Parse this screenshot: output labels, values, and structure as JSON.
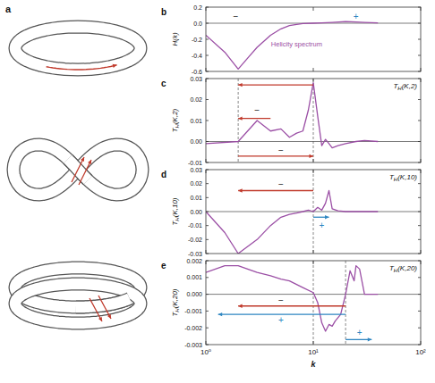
{
  "diagram": {
    "label": "a"
  },
  "chart_data": [
    {
      "type": "line",
      "label": "b",
      "ylabel": "H(k)",
      "x": [
        1,
        1.5,
        2,
        2.5,
        3,
        4,
        5,
        6,
        7,
        8,
        10,
        12,
        15,
        20,
        25,
        30,
        40
      ],
      "values": [
        -0.15,
        -0.36,
        -0.57,
        -0.42,
        -0.3,
        -0.15,
        -0.07,
        -0.03,
        -0.015,
        -0.005,
        0,
        0.005,
        0.01,
        0.02,
        0.015,
        0.01,
        0.005
      ],
      "color": "#9b4fa5",
      "log": "x",
      "xlim": [
        1,
        100
      ],
      "xticks": [
        1,
        10,
        100
      ],
      "ylim": [
        -0.6,
        0.2
      ],
      "yticks": [
        0.2,
        {
          "value": 0,
          "label": "0.0"
        },
        -0.2,
        -0.4,
        -0.6
      ],
      "tick_labels": "y",
      "hline": 0,
      "annotations": [
        {
          "text": "Helicity spectrum",
          "x": 7,
          "y": -0.25,
          "color": "#9b4fa5"
        },
        {
          "text": "−",
          "x": 1.9,
          "y": 0.08,
          "color": "#222222"
        },
        {
          "text": "+",
          "x": 25,
          "y": 0.08,
          "color": "#2e86c1"
        }
      ]
    },
    {
      "type": "line",
      "label": "c",
      "ylabel": {
        "main": "T",
        "sub": "H",
        "rest": "(K,2)"
      },
      "tag": {
        "main": "T",
        "sub": "H",
        "rest": "(K,2)"
      },
      "x": [
        1,
        2,
        3,
        4,
        5,
        6,
        7,
        8,
        9,
        10,
        11,
        12,
        13,
        14,
        15,
        17,
        20,
        25,
        30,
        40
      ],
      "values": [
        -0.001,
        0,
        0.01,
        0.005,
        0.006,
        0.002,
        0.004,
        0.005,
        0.015,
        0.028,
        0.012,
        -0.002,
        0.001,
        -0.001,
        -0.003,
        -0.002,
        -0.001,
        0,
        0.0005,
        0
      ],
      "color": "#9b4fa5",
      "log": "x",
      "xlim": [
        1,
        100
      ],
      "xticks": [
        1,
        10,
        100
      ],
      "ylim": [
        -0.01,
        0.03
      ],
      "yticks": [
        -0.01,
        {
          "value": 0,
          "label": "0.00"
        },
        0.01,
        0.02,
        0.03
      ],
      "tick_labels": "y",
      "hline": 0,
      "vlines": [
        2,
        10
      ],
      "arrows": [
        {
          "from": 10,
          "to": 2,
          "y": 0.027,
          "color": "#c0392b"
        },
        {
          "from": 4,
          "to": 2,
          "y": 0.011,
          "color": "#c0392b"
        },
        {
          "from": 2,
          "to": 10,
          "y": -0.007,
          "color": "#c0392b"
        }
      ],
      "annotations": [
        {
          "text": "−",
          "x": 3,
          "y": 0.0145,
          "color": "#222222"
        },
        {
          "text": "−",
          "x": 5,
          "y": -0.0045,
          "color": "#222222"
        }
      ]
    },
    {
      "type": "line",
      "label": "d",
      "ylabel": {
        "main": "T",
        "sub": "H",
        "rest": "(K,10)"
      },
      "tag": {
        "main": "T",
        "sub": "H",
        "rest": "(K,10)"
      },
      "x": [
        1,
        1.5,
        2,
        3,
        4,
        5,
        6,
        7,
        8,
        9,
        10,
        11,
        12,
        13,
        14,
        15,
        17,
        20,
        30,
        40
      ],
      "values": [
        0,
        -0.015,
        -0.03,
        -0.02,
        -0.01,
        -0.004,
        -0.002,
        -0.001,
        0,
        0.001,
        0,
        0.003,
        0.001,
        0.006,
        0.015,
        0.002,
        0.0005,
        0,
        0,
        0
      ],
      "color": "#9b4fa5",
      "log": "x",
      "xlim": [
        1,
        100
      ],
      "xticks": [
        1,
        10,
        100
      ],
      "ylim": [
        -0.03,
        0.03
      ],
      "yticks": [
        -0.03,
        -0.02,
        -0.01,
        {
          "value": 0,
          "label": "0.00"
        },
        0.01,
        0.02,
        0.03
      ],
      "tick_labels": "y",
      "hline": 0,
      "vlines": [
        10
      ],
      "arrows": [
        {
          "from": 10,
          "to": 2,
          "y": 0.015,
          "color": "#c0392b"
        },
        {
          "from": 10,
          "to": 14,
          "y": -0.004,
          "color": "#2e86c1"
        }
      ],
      "annotations": [
        {
          "text": "−",
          "x": 5,
          "y": 0.019,
          "color": "#222222"
        },
        {
          "text": "+",
          "x": 12,
          "y": -0.01,
          "color": "#2e86c1"
        }
      ]
    },
    {
      "type": "line",
      "label": "e",
      "ylabel": {
        "main": "T",
        "sub": "H",
        "rest": "(K,20)"
      },
      "tag": {
        "main": "T",
        "sub": "H",
        "rest": "(K,20)"
      },
      "xlabel": "k",
      "x": [
        1,
        1.5,
        2,
        3,
        4,
        5,
        6,
        8,
        10,
        11,
        12,
        13,
        14,
        15,
        16,
        18,
        20,
        22,
        24,
        25,
        27,
        30,
        40
      ],
      "values": [
        0.0013,
        0.0017,
        0.0017,
        0.0013,
        0.0011,
        0.0009,
        0.0008,
        0.0004,
        0.0001,
        -0.0005,
        -0.0017,
        -0.0022,
        -0.0018,
        -0.0019,
        -0.0016,
        -0.0012,
        0,
        0.0014,
        0.0008,
        0.0017,
        0.0015,
        0,
        0
      ],
      "color": "#9b4fa5",
      "log": "x",
      "xlim": [
        1,
        100
      ],
      "xticks": [
        {
          "value": 1,
          "label": "10⁰"
        },
        {
          "value": 10,
          "label": "10¹"
        },
        {
          "value": 100,
          "label": "10²"
        }
      ],
      "ylim": [
        -0.003,
        0.002
      ],
      "yticks": [
        -0.003,
        -0.002,
        -0.001,
        {
          "value": 0,
          "label": "0.000"
        },
        0.001,
        0.002
      ],
      "hline": 0,
      "vlines": [
        10,
        20
      ],
      "arrows": [
        {
          "from": 20,
          "to": 2,
          "y": -0.0007,
          "color": "#c0392b"
        },
        {
          "from": 20,
          "to": 1.3,
          "y": -0.0012,
          "color": "#2e86c1"
        },
        {
          "from": 20,
          "to": 35,
          "y": -0.0027,
          "color": "#2e86c1"
        }
      ],
      "annotations": [
        {
          "text": "−",
          "x": 5,
          "y": -0.0004,
          "color": "#222222"
        },
        {
          "text": "+",
          "x": 5,
          "y": -0.00155,
          "color": "#2e86c1"
        },
        {
          "text": "+",
          "x": 27,
          "y": -0.0023,
          "color": "#2e86c1"
        }
      ]
    }
  ]
}
